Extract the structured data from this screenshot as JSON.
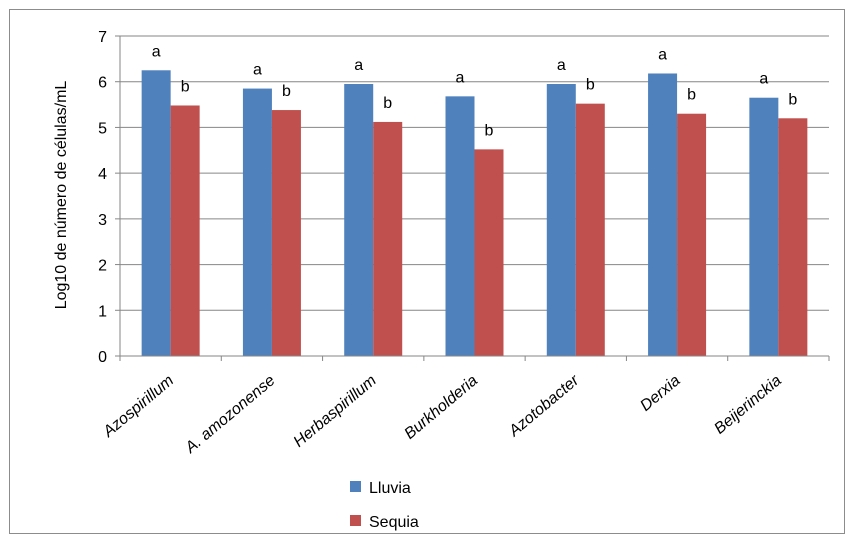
{
  "chart_data": {
    "type": "bar",
    "ylabel": "Log10 de número de células/mL",
    "ylim": [
      0,
      7
    ],
    "yticks": [
      "0",
      "1",
      "2",
      "3",
      "4",
      "5",
      "6",
      "7"
    ],
    "grid": true,
    "legend_position": "bottom",
    "categories": [
      "Azospirillum",
      "A. amozonense",
      "Herbaspirillum",
      "Burkholderia",
      "Azotobacter",
      "Derxia",
      "Beijerinckia"
    ],
    "series": [
      {
        "name": "Lluvia",
        "color": "#4f81bd",
        "values": [
          6.25,
          5.85,
          5.95,
          5.68,
          5.95,
          6.18,
          5.65
        ],
        "significance": [
          "a",
          "a",
          "a",
          "a",
          "a",
          "a",
          "a"
        ]
      },
      {
        "name": "Sequia",
        "color": "#c0504d",
        "values": [
          5.48,
          5.38,
          5.12,
          4.52,
          5.52,
          5.3,
          5.2
        ],
        "significance": [
          "b",
          "b",
          "b",
          "b",
          "b",
          "b",
          "b"
        ]
      }
    ]
  }
}
